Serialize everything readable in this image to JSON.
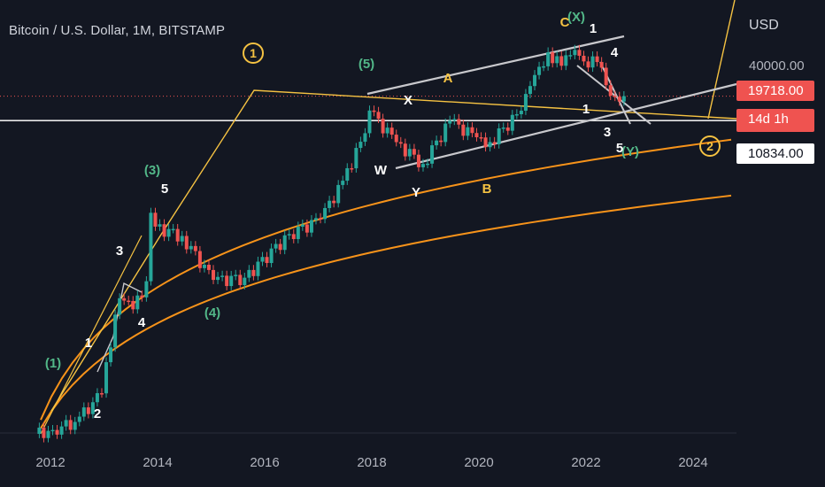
{
  "header": {
    "title": "Bitcoin / U.S. Dollar, 1M, BITSTAMP",
    "currency": "USD"
  },
  "price_scale": {
    "tick": "40000.00",
    "current_price": "19718.00",
    "countdown": "14d 1h",
    "marked_price": "10834.00"
  },
  "colors": {
    "background": "#131722",
    "up": "#26a69a",
    "down": "#ef5350",
    "orange": "#f7931a",
    "yellow": "#f5c242",
    "gray": "#b2b5be"
  },
  "chart_data": {
    "type": "candlestick",
    "symbol": "BTCUSD",
    "interval": "1M",
    "exchange": "BITSTAMP",
    "x_ticks": [
      "2012",
      "2014",
      "2016",
      "2018",
      "2020",
      "2022",
      "2024"
    ],
    "y_ticks": [
      "40000.00"
    ],
    "last_price": 19718,
    "price_line": 10834,
    "closes": [
      {
        "date": "2011-09",
        "close": 5
      },
      {
        "date": "2012-01",
        "close": 5.5
      },
      {
        "date": "2012-06",
        "close": 6.7
      },
      {
        "date": "2012-12",
        "close": 13.5
      },
      {
        "date": "2013-03",
        "close": 93
      },
      {
        "date": "2013-04",
        "close": 139
      },
      {
        "date": "2013-07",
        "close": 106
      },
      {
        "date": "2013-10",
        "close": 211
      },
      {
        "date": "2013-11",
        "close": 1130
      },
      {
        "date": "2013-12",
        "close": 805
      },
      {
        "date": "2014-06",
        "close": 640
      },
      {
        "date": "2015-01",
        "close": 218
      },
      {
        "date": "2015-08",
        "close": 230
      },
      {
        "date": "2016-06",
        "close": 670
      },
      {
        "date": "2017-01",
        "close": 970
      },
      {
        "date": "2017-06",
        "close": 2480
      },
      {
        "date": "2017-10",
        "close": 6450
      },
      {
        "date": "2017-12",
        "close": 13860
      },
      {
        "date": "2018-06",
        "close": 6390
      },
      {
        "date": "2018-12",
        "close": 3740
      },
      {
        "date": "2019-06",
        "close": 10800
      },
      {
        "date": "2019-12",
        "close": 7200
      },
      {
        "date": "2020-03",
        "close": 6400
      },
      {
        "date": "2020-10",
        "close": 13800
      },
      {
        "date": "2021-01",
        "close": 33100
      },
      {
        "date": "2021-04",
        "close": 57700
      },
      {
        "date": "2021-07",
        "close": 41500
      },
      {
        "date": "2021-10",
        "close": 61300
      },
      {
        "date": "2021-12",
        "close": 46200
      },
      {
        "date": "2022-03",
        "close": 45500
      },
      {
        "date": "2022-06",
        "close": 19900
      },
      {
        "date": "2022-09",
        "close": 19718
      }
    ],
    "wave_labels": [
      {
        "text": "(1)",
        "color": "green"
      },
      {
        "text": "(3)",
        "color": "green"
      },
      {
        "text": "(4)",
        "color": "green"
      },
      {
        "text": "(5)",
        "color": "green"
      },
      {
        "text": "(X)",
        "color": "green"
      },
      {
        "text": "(Y)",
        "color": "green"
      },
      {
        "text": "1",
        "color": "white"
      },
      {
        "text": "2",
        "color": "white"
      },
      {
        "text": "3",
        "color": "white"
      },
      {
        "text": "4",
        "color": "white"
      },
      {
        "text": "5",
        "color": "white"
      },
      {
        "text": "W",
        "color": "white"
      },
      {
        "text": "X",
        "color": "white"
      },
      {
        "text": "Y",
        "color": "white"
      },
      {
        "text": "A",
        "color": "yellow"
      },
      {
        "text": "B",
        "color": "yellow"
      },
      {
        "text": "C",
        "color": "yellow"
      },
      {
        "text": "1",
        "color": "yellow",
        "circled": true
      },
      {
        "text": "2",
        "color": "yellow",
        "circled": true
      }
    ]
  }
}
